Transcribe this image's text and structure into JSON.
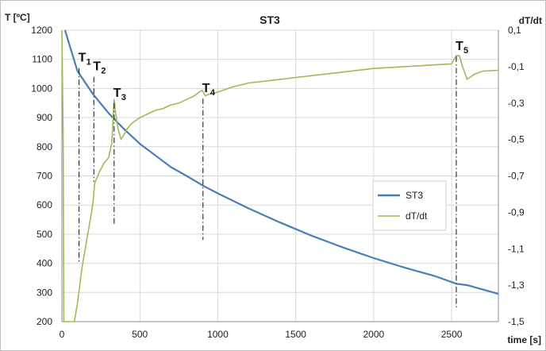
{
  "chart_data": {
    "type": "line",
    "title": "ST3",
    "xlabel": "time [s]",
    "ylabel_left": "T [ºC]",
    "ylabel_right": "dT/dt",
    "xlim": [
      0,
      2800
    ],
    "ylim_left": [
      200,
      1200
    ],
    "ylim_right": [
      -1.5,
      0.1
    ],
    "x_ticks": [
      "0",
      "500",
      "1000",
      "1500",
      "2000",
      "2500"
    ],
    "y_left_ticks": [
      "200",
      "300",
      "400",
      "500",
      "600",
      "700",
      "800",
      "900",
      "1000",
      "1100",
      "1200"
    ],
    "y_right_ticks": [
      "-1,5",
      "-1,3",
      "-1,1",
      "-0,9",
      "-0,7",
      "-0,5",
      "-0,3",
      "-0,1",
      "0,1"
    ],
    "grid": true,
    "legend_position": "bottom-right",
    "series": [
      {
        "name": "ST3",
        "axis": "left",
        "color": "#4a7ebb",
        "x": [
          20,
          100,
          200,
          300,
          400,
          500,
          600,
          700,
          800,
          900,
          1000,
          1200,
          1400,
          1600,
          1800,
          2000,
          2200,
          2400,
          2530,
          2600,
          2700,
          2800
        ],
        "y": [
          1200,
          1060,
          980,
          915,
          860,
          810,
          770,
          730,
          700,
          668,
          640,
          588,
          540,
          495,
          455,
          418,
          385,
          355,
          330,
          325,
          310,
          295
        ]
      },
      {
        "name": "dT/dt",
        "axis": "right",
        "color": "#9bbb59",
        "x": [
          0,
          8,
          12,
          30,
          60,
          80,
          100,
          110,
          130,
          160,
          190,
          200,
          210,
          220,
          240,
          270,
          300,
          320,
          335,
          345,
          360,
          380,
          400,
          420,
          450,
          500,
          550,
          600,
          650,
          700,
          750,
          800,
          850,
          880,
          900,
          920,
          950,
          1000,
          1100,
          1200,
          1400,
          1600,
          1800,
          2000,
          2200,
          2400,
          2500,
          2530,
          2550,
          2570,
          2600,
          2650,
          2700,
          2800
        ],
        "y": [
          0.1,
          -0.5,
          -1.5,
          -1.5,
          -1.5,
          -1.5,
          -1.4,
          -1.33,
          -1.2,
          -1.05,
          -0.9,
          -0.84,
          -0.74,
          -0.72,
          -0.68,
          -0.63,
          -0.6,
          -0.52,
          -0.28,
          -0.36,
          -0.44,
          -0.5,
          -0.47,
          -0.44,
          -0.41,
          -0.38,
          -0.36,
          -0.34,
          -0.33,
          -0.31,
          -0.3,
          -0.28,
          -0.26,
          -0.24,
          -0.23,
          -0.26,
          -0.25,
          -0.24,
          -0.21,
          -0.19,
          -0.17,
          -0.15,
          -0.13,
          -0.11,
          -0.1,
          -0.09,
          -0.085,
          -0.04,
          -0.04,
          -0.1,
          -0.17,
          -0.14,
          -0.125,
          -0.12
        ]
      }
    ],
    "annotations": [
      {
        "label": "T",
        "sub": "1",
        "x": 110,
        "y_top": 1070,
        "y_bottom": 405
      },
      {
        "label": "T",
        "sub": "2",
        "x": 205,
        "y_top": 1040,
        "y_bottom": 680
      },
      {
        "label": "T",
        "sub": "3",
        "x": 335,
        "y_top": 950,
        "y_bottom": 535
      },
      {
        "label": "T",
        "sub": "4",
        "x": 905,
        "y_top": 965,
        "y_bottom": 480
      },
      {
        "label": "T",
        "sub": "5",
        "x": 2530,
        "y_top": 1110,
        "y_bottom": 245
      }
    ]
  }
}
